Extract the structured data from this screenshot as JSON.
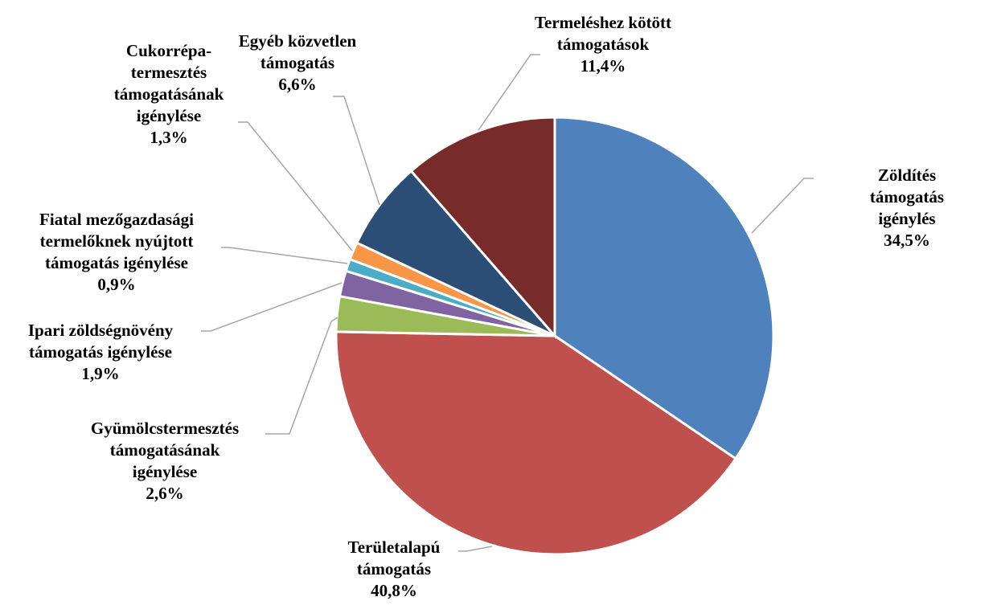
{
  "chart_data": {
    "type": "pie",
    "categories": [
      "Zöldítés támogatás\nigénylés",
      "Területalapú\ntámogatás",
      "Gyümölcstermesztés\ntámogatásának\nigénylése",
      "Ipari zöldségnövény\ntámogatás igénylése",
      "Fiatal mezőgazdasági\ntermelőknek nyújtott\ntámogatás igénylése",
      "Cukorrépa-\ntermesztés\ntámogatásának\nigénylése",
      "Egyéb közvetlen\ntámogatás",
      "Termeléshez kötött\ntámogatások"
    ],
    "values": [
      34.5,
      40.8,
      2.6,
      1.9,
      0.9,
      1.3,
      6.6,
      11.4
    ],
    "value_labels": [
      "34,5%",
      "40,8%",
      "2,6%",
      "1,9%",
      "0,9%",
      "1,3%",
      "6,6%",
      "11,4%"
    ],
    "colors": [
      "#4f81bd",
      "#c0504d",
      "#9bbb59",
      "#8064a2",
      "#4bacc6",
      "#f79646",
      "#2c4d75",
      "#772c2a"
    ]
  }
}
